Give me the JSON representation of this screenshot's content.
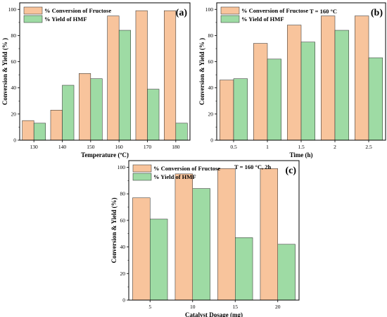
{
  "colors": {
    "conversion": "#f8c49c",
    "yield": "#9edba4",
    "bar_stroke": "#222222",
    "frame": "#000000"
  },
  "chart_data": [
    {
      "type": "bar",
      "panel": "(a)",
      "categories": [
        "130",
        "140",
        "150",
        "160",
        "170",
        "180"
      ],
      "series": [
        {
          "name": "% Conversion of Fructose",
          "values": [
            15,
            23,
            51,
            95,
            99,
            99
          ]
        },
        {
          "name": "% Yield of HMF",
          "values": [
            13,
            42,
            47,
            84,
            39,
            13
          ]
        }
      ],
      "xlabel": "Temperature (ºC)",
      "ylabel": "Conversion & Yield (% )",
      "ylim": [
        0,
        105
      ],
      "yticks": [
        0,
        20,
        40,
        60,
        80,
        100
      ],
      "note": "",
      "legend": "top-left"
    },
    {
      "type": "bar",
      "panel": "(b)",
      "categories": [
        "0.5",
        "1",
        "1.5",
        "2",
        "2.5"
      ],
      "series": [
        {
          "name": "% Conversion of Fructose",
          "values": [
            46,
            74,
            88,
            95,
            95
          ]
        },
        {
          "name": "% Yield of HMF",
          "values": [
            47,
            62,
            75,
            84,
            63
          ]
        }
      ],
      "xlabel": "Time (h)",
      "ylabel": "Conversion & Yield (% )",
      "ylim": [
        0,
        105
      ],
      "yticks": [
        0,
        20,
        40,
        60,
        80,
        100
      ],
      "note": "T = 160 °C",
      "legend": "top-left"
    },
    {
      "type": "bar",
      "panel": "(c)",
      "categories": [
        "5",
        "10",
        "15",
        "20"
      ],
      "series": [
        {
          "name": "% Conversion of Fructose",
          "values": [
            77,
            95,
            99,
            99
          ]
        },
        {
          "name": "% Yield of HMF",
          "values": [
            61,
            84,
            47,
            42
          ]
        }
      ],
      "xlabel": "Catalyst Dosage (mg)",
      "ylabel": "Conversion & Yield (%)",
      "ylim": [
        0,
        105
      ],
      "yticks": [
        0,
        20,
        40,
        60,
        80,
        100
      ],
      "note": "T = 160 °C, 2h",
      "legend": "top-left"
    }
  ]
}
